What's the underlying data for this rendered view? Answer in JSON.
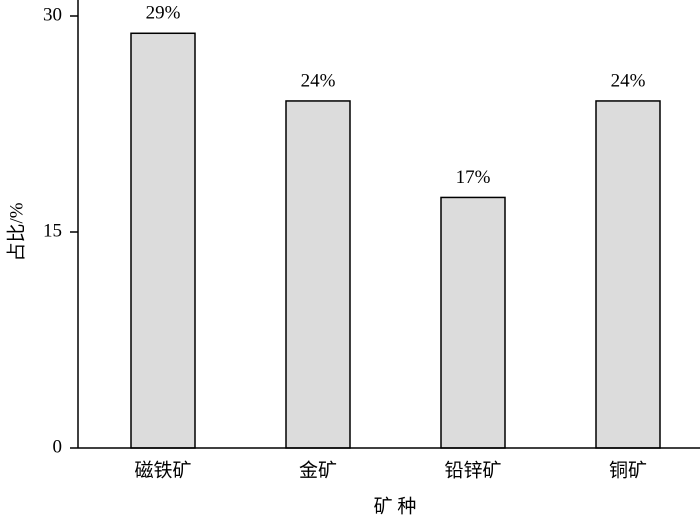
{
  "chart_data": {
    "type": "bar",
    "x_label": "矿 种",
    "y_label": "占比/%",
    "categories": [
      "磁铁矿",
      "金矿",
      "铅锌矿",
      "铜矿"
    ],
    "values": [
      28.8,
      24.1,
      17.4,
      24.1
    ],
    "value_labels": [
      "29%",
      "24%",
      "17%",
      "24%"
    ],
    "color": "#dcdcdc",
    "ylim": [
      0,
      30
    ],
    "yticks": [
      0,
      15,
      30
    ],
    "grid": false
  }
}
